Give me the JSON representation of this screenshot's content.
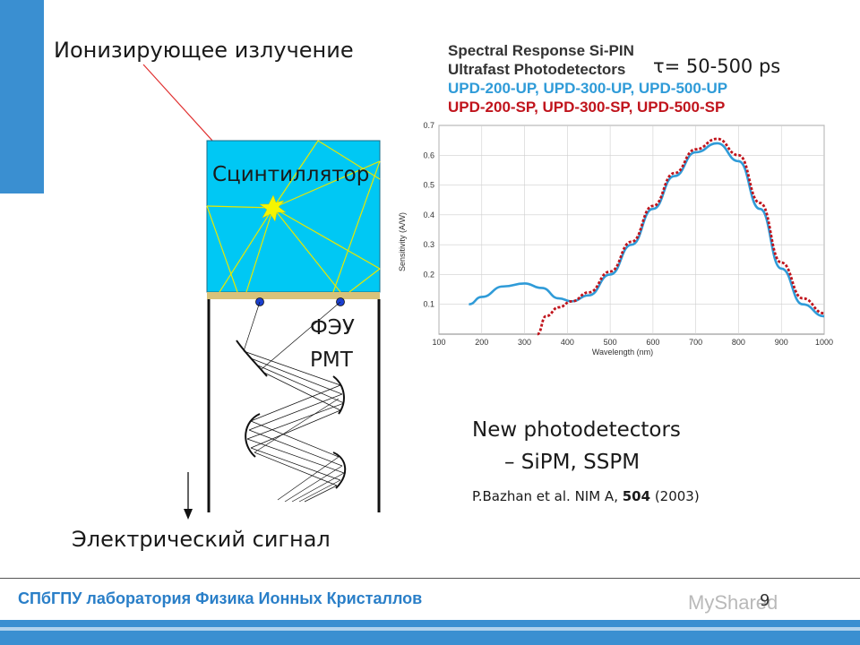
{
  "slide": {
    "ionizing_label": "Ионизирующее излучение",
    "scintillator_label": "Сцинтиллятор",
    "pmt_ru": "ФЭУ",
    "pmt_en": "PMT",
    "signal_label": "Электрический сигнал",
    "tau_label": "τ= 50-500 ps",
    "new_photodetectors_line1": "New photodetectors",
    "new_photodetectors_line2": "– SiPM, SSPM",
    "reference_prefix": "P.Bazhan et al. NIM A, ",
    "reference_volume": "504",
    "reference_suffix": " (2003)",
    "footer_text": "СПбГПУ лаборатория Физика Ионных Кристаллов",
    "page_number": "9",
    "watermark": "MyShared"
  },
  "colors": {
    "accent_blue": "#3a8fd1",
    "scintillator": "#00c8f4",
    "light_guide": "#d9c27a",
    "ray_yellow": "#e8e800",
    "incident_ray": "#e03030",
    "curve_up": "#2f9bd8",
    "curve_sp": "#c0141c"
  },
  "chart_data": {
    "type": "line",
    "title_lines": [
      "Spectral Response Si-PIN",
      "Ultrafast Photodetectors"
    ],
    "legend_lines": [
      "UPD-200-UP, UPD-300-UP, UPD-500-UP",
      "UPD-200-SP, UPD-300-SP, UPD-500-SP"
    ],
    "xlabel": "Wavelength (nm)",
    "ylabel": "Sensitivity (A/W)",
    "xlim": [
      100,
      1000
    ],
    "ylim": [
      0,
      0.7
    ],
    "xticks": [
      "100",
      "200",
      "300",
      "400",
      "500",
      "600",
      "700",
      "800",
      "900",
      "1000"
    ],
    "yticks": [
      "0.1",
      "0.2",
      "0.3",
      "0.4",
      "0.5",
      "0.6",
      "0.7"
    ],
    "grid": true,
    "series": [
      {
        "name": "UPD-200-UP, UPD-300-UP, UPD-500-UP",
        "style": "solid",
        "x": [
          170,
          200,
          250,
          300,
          340,
          380,
          410,
          450,
          500,
          550,
          600,
          650,
          700,
          750,
          800,
          850,
          900,
          950,
          1000
        ],
        "y": [
          0.1,
          0.125,
          0.16,
          0.17,
          0.155,
          0.12,
          0.11,
          0.13,
          0.2,
          0.3,
          0.42,
          0.53,
          0.61,
          0.64,
          0.58,
          0.42,
          0.22,
          0.1,
          0.06
        ]
      },
      {
        "name": "UPD-200-SP, UPD-300-SP, UPD-500-SP",
        "style": "dotted",
        "x": [
          330,
          350,
          380,
          410,
          450,
          500,
          550,
          600,
          650,
          700,
          750,
          800,
          850,
          900,
          950,
          1000
        ],
        "y": [
          0.0,
          0.06,
          0.09,
          0.11,
          0.14,
          0.21,
          0.31,
          0.43,
          0.54,
          0.62,
          0.655,
          0.6,
          0.44,
          0.24,
          0.12,
          0.07
        ]
      }
    ]
  }
}
